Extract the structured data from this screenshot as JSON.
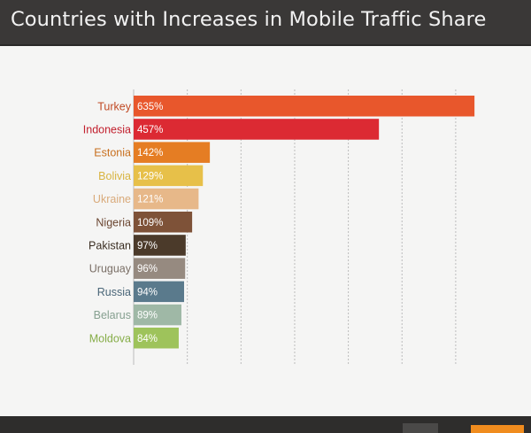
{
  "header": {
    "title": "Countries with Increases in Mobile Traffic Share"
  },
  "colors": {
    "header_bg": "#3a3837",
    "gridline": "#bcbcbc"
  },
  "chart_data": {
    "type": "bar",
    "orientation": "horizontal",
    "title": "Countries with Increases in Mobile Traffic Share",
    "xlabel": "",
    "ylabel": "",
    "xlim": [
      0,
      600
    ],
    "grid": true,
    "legend": "none",
    "categories": [
      "Turkey",
      "Indonesia",
      "Estonia",
      "Bolivia",
      "Ukraine",
      "Nigeria",
      "Pakistan",
      "Uruguay",
      "Russia",
      "Belarus",
      "Moldova"
    ],
    "values": [
      635,
      457,
      142,
      129,
      121,
      109,
      97,
      96,
      94,
      89,
      84
    ],
    "value_labels": [
      "635%",
      "457%",
      "142%",
      "129%",
      "121%",
      "109%",
      "97%",
      "96%",
      "94%",
      "89%",
      "84%"
    ],
    "bar_colors": [
      "#e8572c",
      "#dc2a33",
      "#e57d23",
      "#e7c049",
      "#e7b889",
      "#7e5238",
      "#4b3a2a",
      "#968a80",
      "#5a7a8c",
      "#9fb8a6",
      "#9ec35b"
    ],
    "label_colors": [
      "#c04a24",
      "#c2202e",
      "#c8701f",
      "#d8b440",
      "#d9aa7a",
      "#6a4530",
      "#3a2e22",
      "#7a6f66",
      "#4a6678",
      "#86a090",
      "#86ad48"
    ]
  }
}
